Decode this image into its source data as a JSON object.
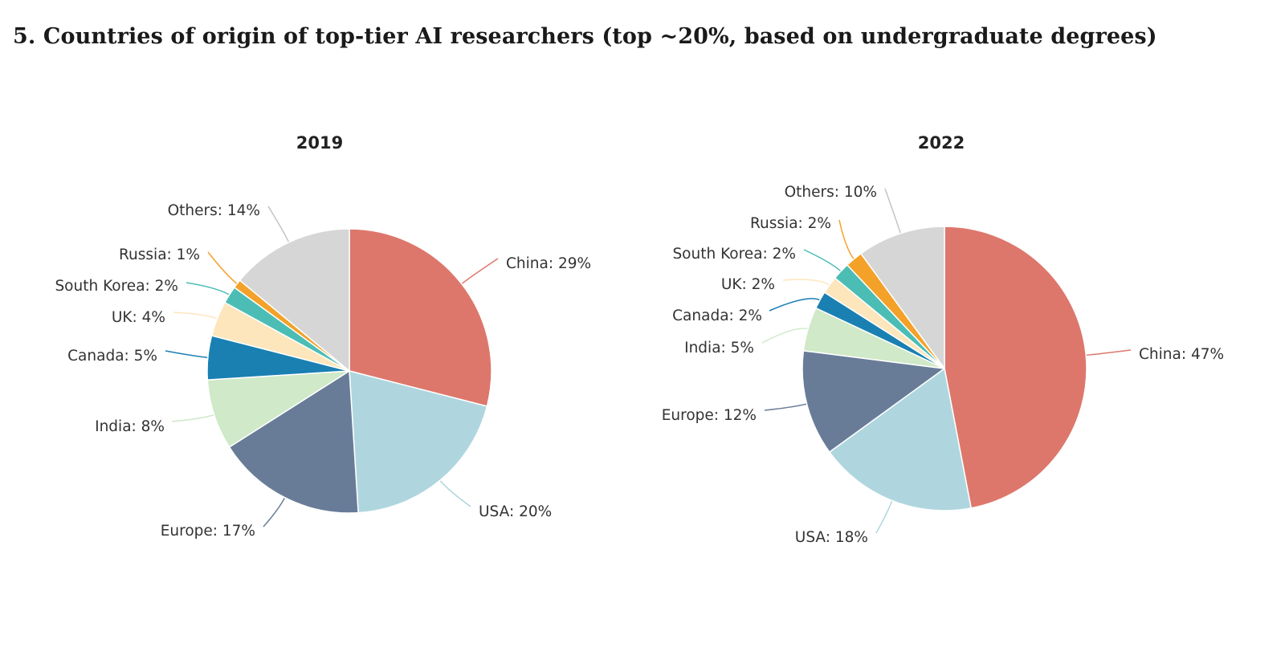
{
  "page": {
    "title": "5. Countries of origin of top-tier AI researchers (top ~20%, based on undergraduate degrees)"
  },
  "chart_data": [
    {
      "type": "pie",
      "title": "2019",
      "unit": "%",
      "slices": [
        {
          "label": "China",
          "value": 29,
          "color": "#dd776c"
        },
        {
          "label": "USA",
          "value": 20,
          "color": "#afd6de"
        },
        {
          "label": "Europe",
          "value": 17,
          "color": "#687c98"
        },
        {
          "label": "India",
          "value": 8,
          "color": "#d0e9c8"
        },
        {
          "label": "Canada",
          "value": 5,
          "color": "#1a80b2"
        },
        {
          "label": "UK",
          "value": 4,
          "color": "#fde6bc"
        },
        {
          "label": "South Korea",
          "value": 2,
          "color": "#4cbdb5"
        },
        {
          "label": "Russia",
          "value": 1,
          "color": "#f4a12a"
        },
        {
          "label": "Others",
          "value": 14,
          "color": "#d6d6d6"
        }
      ]
    },
    {
      "type": "pie",
      "title": "2022",
      "unit": "%",
      "slices": [
        {
          "label": "China",
          "value": 47,
          "color": "#dd776c"
        },
        {
          "label": "USA",
          "value": 18,
          "color": "#afd6de"
        },
        {
          "label": "Europe",
          "value": 12,
          "color": "#687c98"
        },
        {
          "label": "India",
          "value": 5,
          "color": "#d0e9c8"
        },
        {
          "label": "Canada",
          "value": 2,
          "color": "#1a80b2"
        },
        {
          "label": "UK",
          "value": 2,
          "color": "#fde6bc"
        },
        {
          "label": "South Korea",
          "value": 2,
          "color": "#4cbdb5"
        },
        {
          "label": "Russia",
          "value": 2,
          "color": "#f4a12a"
        },
        {
          "label": "Others",
          "value": 10,
          "color": "#d6d6d6"
        }
      ]
    }
  ]
}
